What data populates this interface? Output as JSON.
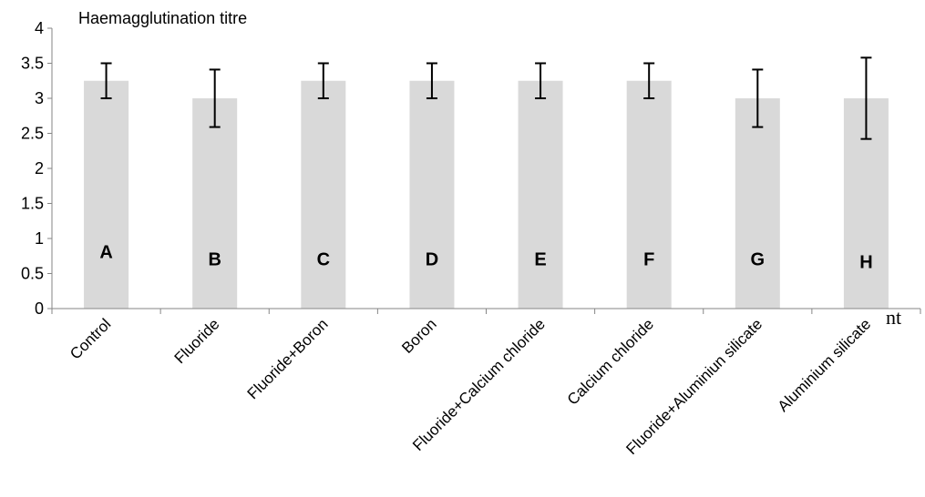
{
  "chart_data": {
    "type": "bar",
    "ylabel": "Haemagglutination titre",
    "xlabel": "",
    "ylim": [
      0,
      4
    ],
    "y_ticks": [
      "0",
      "0.5",
      "1",
      "1.5",
      "2",
      "2.5",
      "3",
      "3.5",
      "4"
    ],
    "categories": [
      "Control",
      "Fluoride",
      "Fluoride+Boron",
      "Boron",
      "Fluoride+Calcium chloride",
      "Calcium chloride",
      "Fluoride+Aluminiun silicate",
      "Aluminium silicate"
    ],
    "values": [
      3.25,
      3.0,
      3.25,
      3.25,
      3.25,
      3.25,
      3.0,
      3.0
    ],
    "errors": [
      0.25,
      0.41,
      0.25,
      0.25,
      0.25,
      0.25,
      0.41,
      0.58
    ],
    "bar_labels": [
      "A",
      "B",
      "C",
      "D",
      "E",
      "F",
      "G",
      "H"
    ],
    "bar_label_values": [
      0.72,
      0.62,
      0.62,
      0.62,
      0.62,
      0.62,
      0.62,
      0.58
    ],
    "stray_text": "nt",
    "bar_color": "#d9d9d9",
    "grid": false,
    "legend": "none"
  }
}
